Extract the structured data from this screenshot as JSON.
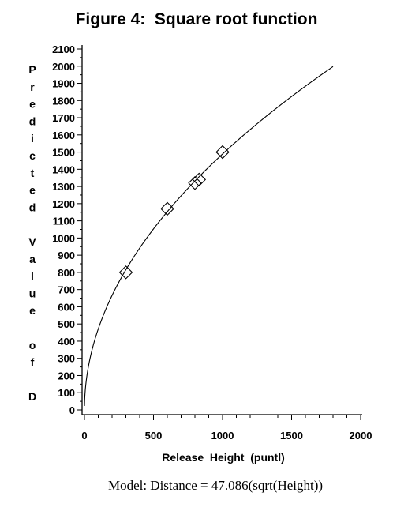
{
  "chart_data": {
    "type": "line",
    "title": "Figure 4:  Square root function",
    "xlabel": "Release  Height  (puntl)",
    "ylabel": "Predicted Value of D",
    "caption": "Model: Distance = 47.086(sqrt(Height))",
    "xlim": [
      0,
      2000
    ],
    "ylim": [
      0,
      2100
    ],
    "x_ticks": [
      0,
      500,
      1000,
      1500,
      2000
    ],
    "y_ticks": [
      0,
      100,
      200,
      300,
      400,
      500,
      600,
      700,
      800,
      900,
      1000,
      1100,
      1200,
      1300,
      1400,
      1500,
      1600,
      1700,
      1800,
      1900,
      2000,
      2100
    ],
    "grid": false,
    "series": [
      {
        "kind": "curve",
        "coefficient": 47.086,
        "x_range": [
          0,
          1800
        ],
        "color": "#000000"
      },
      {
        "kind": "points",
        "marker": "diamond",
        "color": "#000000",
        "points": [
          {
            "x": 300,
            "y": 800
          },
          {
            "x": 600,
            "y": 1170
          },
          {
            "x": 800,
            "y": 1320
          },
          {
            "x": 830,
            "y": 1340
          },
          {
            "x": 1000,
            "y": 1500
          }
        ]
      }
    ]
  }
}
